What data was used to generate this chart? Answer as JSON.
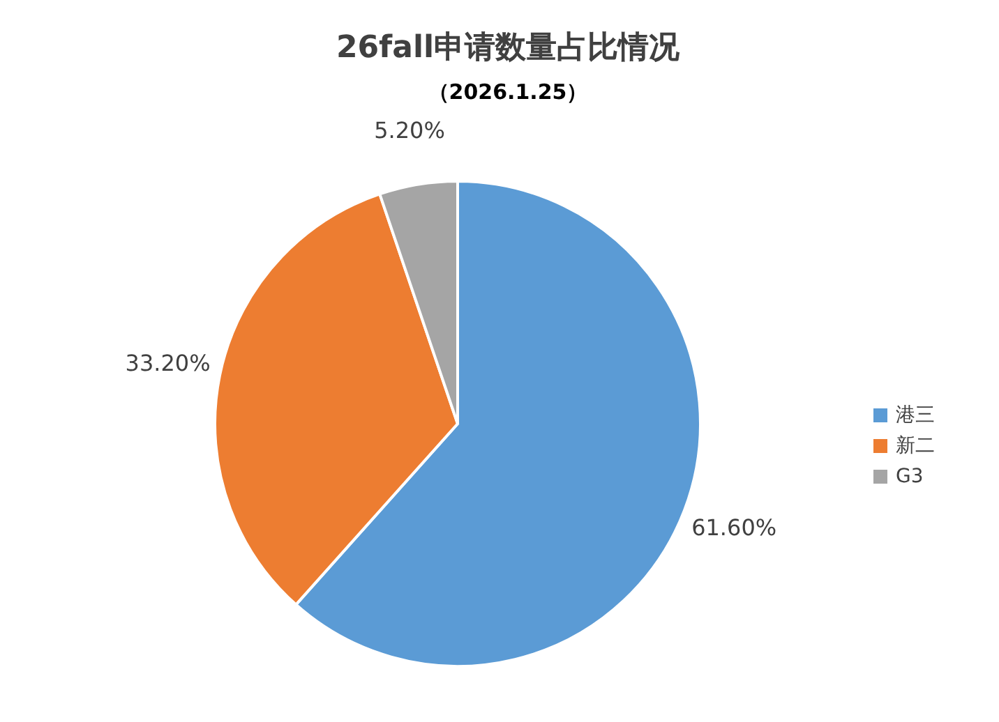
{
  "chart_data": {
    "type": "pie",
    "title": "26fall申请数量占比情况",
    "subtitle": "（2026.1.25）",
    "categories": [
      "港三",
      "新二",
      "G3"
    ],
    "values": [
      61.6,
      33.2,
      5.2
    ],
    "colors": [
      "#5b9bd5",
      "#ed7d31",
      "#a5a5a5"
    ],
    "value_labels": [
      "61.60%",
      "33.20%",
      "5.20%"
    ],
    "legend": "right"
  }
}
